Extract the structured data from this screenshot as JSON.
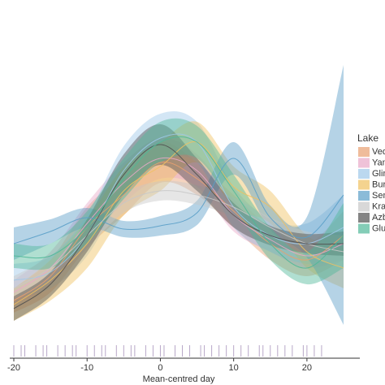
{
  "chart_data": {
    "type": "ribbon",
    "x_label": "Mean-centred day",
    "x": [
      -20,
      -15,
      -10,
      -5,
      0,
      5,
      10,
      15,
      20,
      25
    ],
    "xlim": [
      -20,
      25
    ],
    "xticks": [
      -20,
      -10,
      0,
      10,
      20
    ],
    "ylim": [
      0,
      390
    ],
    "legend_title": "Lake",
    "legend": "right",
    "series": [
      {
        "name": "Vedl",
        "color": "#e8a070",
        "values": [
          40,
          70,
          130,
          170,
          210,
          190,
          150,
          110,
          90,
          120
        ],
        "ci": [
          15,
          20,
          25,
          25,
          25,
          20,
          20,
          20,
          20,
          30
        ]
      },
      {
        "name": "Yam",
        "color": "#e8a8c8",
        "values": [
          50,
          80,
          135,
          185,
          215,
          200,
          145,
          115,
          95,
          110
        ],
        "ci": [
          15,
          20,
          25,
          25,
          25,
          20,
          20,
          15,
          15,
          20
        ]
      },
      {
        "name": "Glin",
        "color": "#9ec8e8",
        "values": [
          65,
          75,
          120,
          200,
          240,
          235,
          155,
          120,
          110,
          130
        ],
        "ci": [
          20,
          20,
          25,
          30,
          30,
          25,
          25,
          20,
          25,
          40
        ]
      },
      {
        "name": "Bury",
        "color": "#f0c060",
        "values": [
          35,
          65,
          110,
          175,
          205,
          235,
          180,
          155,
          100,
          80
        ],
        "ci": [
          20,
          25,
          30,
          30,
          30,
          25,
          25,
          20,
          20,
          25
        ]
      },
      {
        "name": "Sem",
        "color": "#5a9ec8",
        "values": [
          110,
          125,
          142,
          128,
          132,
          148,
          215,
          142,
          118,
          170
        ],
        "ci": [
          20,
          15,
          12,
          10,
          12,
          15,
          20,
          15,
          25,
          160
        ]
      },
      {
        "name": "Kras",
        "color": "#c8c8c8",
        "values": [
          55,
          80,
          120,
          160,
          175,
          170,
          155,
          130,
          110,
          100
        ],
        "ci": [
          15,
          15,
          15,
          12,
          12,
          12,
          12,
          12,
          15,
          20
        ]
      },
      {
        "name": "Azbo",
        "color": "#505050",
        "values": [
          30,
          60,
          120,
          195,
          232,
          195,
          145,
          120,
          110,
          110
        ],
        "ci": [
          15,
          15,
          20,
          25,
          25,
          20,
          15,
          12,
          12,
          15
        ]
      },
      {
        "name": "Glub",
        "color": "#50b898",
        "values": [
          95,
          95,
          130,
          190,
          235,
          235,
          175,
          110,
          80,
          120
        ],
        "ci": [
          15,
          15,
          20,
          25,
          25,
          20,
          20,
          20,
          20,
          40
        ]
      }
    ],
    "rug_color": "#b8a8c8",
    "rug": [
      -20,
      -19,
      -18.5,
      -17,
      -16,
      -15.5,
      -14,
      -13,
      -12,
      -11.5,
      -10,
      -9,
      -8,
      -7.5,
      -6,
      -5,
      -4,
      -3.5,
      -2,
      -1,
      0,
      0.5,
      2,
      3,
      4,
      5.5,
      6,
      7,
      8,
      9,
      10,
      11,
      12,
      13.5,
      14,
      15,
      16,
      17,
      18,
      19.5,
      20,
      21,
      22
    ]
  }
}
